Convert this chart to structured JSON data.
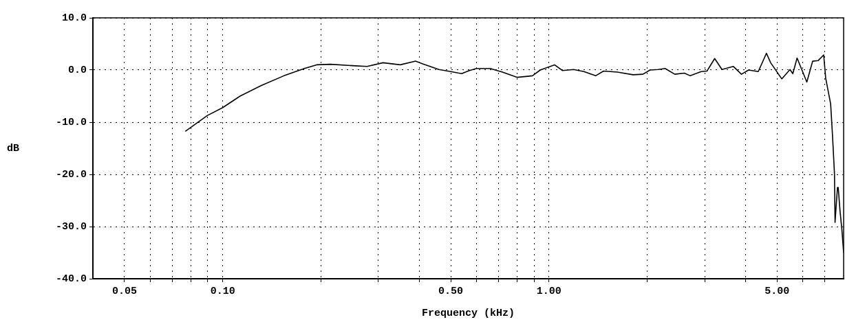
{
  "chart_data": {
    "type": "line",
    "xlabel": "Frequency (kHz)",
    "ylabel": "dB",
    "log": "x",
    "grid": true,
    "legend": false,
    "marker": "none",
    "line_style": "solid",
    "xlim": [
      0.04,
      8
    ],
    "ylim": [
      -40,
      10
    ],
    "xticks": [
      {
        "value": 0.05,
        "label": "0.05"
      },
      {
        "value": 0.06,
        "label": null
      },
      {
        "value": 0.07,
        "label": null
      },
      {
        "value": 0.08,
        "label": null
      },
      {
        "value": 0.09,
        "label": null
      },
      {
        "value": 0.1,
        "label": "0.10"
      },
      {
        "value": 0.2,
        "label": null
      },
      {
        "value": 0.3,
        "label": null
      },
      {
        "value": 0.4,
        "label": null
      },
      {
        "value": 0.5,
        "label": "0.50"
      },
      {
        "value": 0.6,
        "label": null
      },
      {
        "value": 0.7,
        "label": null
      },
      {
        "value": 0.8,
        "label": null
      },
      {
        "value": 0.9,
        "label": null
      },
      {
        "value": 1,
        "label": "1.00"
      },
      {
        "value": 2,
        "label": null
      },
      {
        "value": 3,
        "label": null
      },
      {
        "value": 4,
        "label": null
      },
      {
        "value": 5,
        "label": "5.00"
      },
      {
        "value": 6,
        "label": null
      },
      {
        "value": 7,
        "label": null
      }
    ],
    "yticks": [
      {
        "value": 10,
        "label": "10.0"
      },
      {
        "value": 0,
        "label": "0.0"
      },
      {
        "value": -10,
        "label": "-10.0"
      },
      {
        "value": -20,
        "label": "-20.0"
      },
      {
        "value": -30,
        "label": "-30.0"
      },
      {
        "value": -40,
        "label": "-40.0"
      }
    ],
    "series": [
      {
        "color": "#000000",
        "x": [
          0.077,
          0.0898,
          0.1,
          0.113,
          0.131,
          0.154,
          0.178,
          0.194,
          0.214,
          0.255,
          0.277,
          0.31,
          0.35,
          0.39,
          0.41,
          0.46,
          0.5,
          0.54,
          0.57,
          0.6,
          0.66,
          0.72,
          0.8,
          0.89,
          0.94,
          1.04,
          1.1,
          1.19,
          1.28,
          1.39,
          1.47,
          1.62,
          1.81,
          1.94,
          2.04,
          2.16,
          2.27,
          2.43,
          2.6,
          2.71,
          2.93,
          3.05,
          3.22,
          3.39,
          3.67,
          3.89,
          4.09,
          4.38,
          4.64,
          4.78,
          5.17,
          5.48,
          5.59,
          5.76,
          6.17,
          6.43,
          6.68,
          6.95,
          7.05,
          7.3,
          7.4,
          7.5,
          7.53,
          7.66,
          7.7,
          7.8,
          7.9,
          8.0
        ],
        "values": [
          -11.7,
          -8.7,
          -7.2,
          -5.0,
          -3.0,
          -1.1,
          0.3,
          1.0,
          1.1,
          0.8,
          0.7,
          1.4,
          1.0,
          1.7,
          1.2,
          0.1,
          -0.3,
          -0.7,
          -0.1,
          0.3,
          0.3,
          -0.4,
          -1.4,
          -1.1,
          0,
          1.0,
          -0.1,
          0.1,
          -0.3,
          -1.1,
          -0.2,
          -0.4,
          -0.9,
          -0.8,
          0,
          0.1,
          0.3,
          -0.8,
          -0.6,
          -1.1,
          -0.3,
          -0.2,
          2.2,
          0.1,
          0.7,
          -0.8,
          0,
          -0.3,
          3.2,
          1.4,
          -1.7,
          0.1,
          -0.7,
          2.3,
          -2.3,
          1.7,
          1.8,
          2.9,
          -1.6,
          -6.5,
          -12.8,
          -19.9,
          -29.2,
          -22.5,
          -22.5,
          -27,
          -30.5,
          -35
        ]
      }
    ]
  }
}
